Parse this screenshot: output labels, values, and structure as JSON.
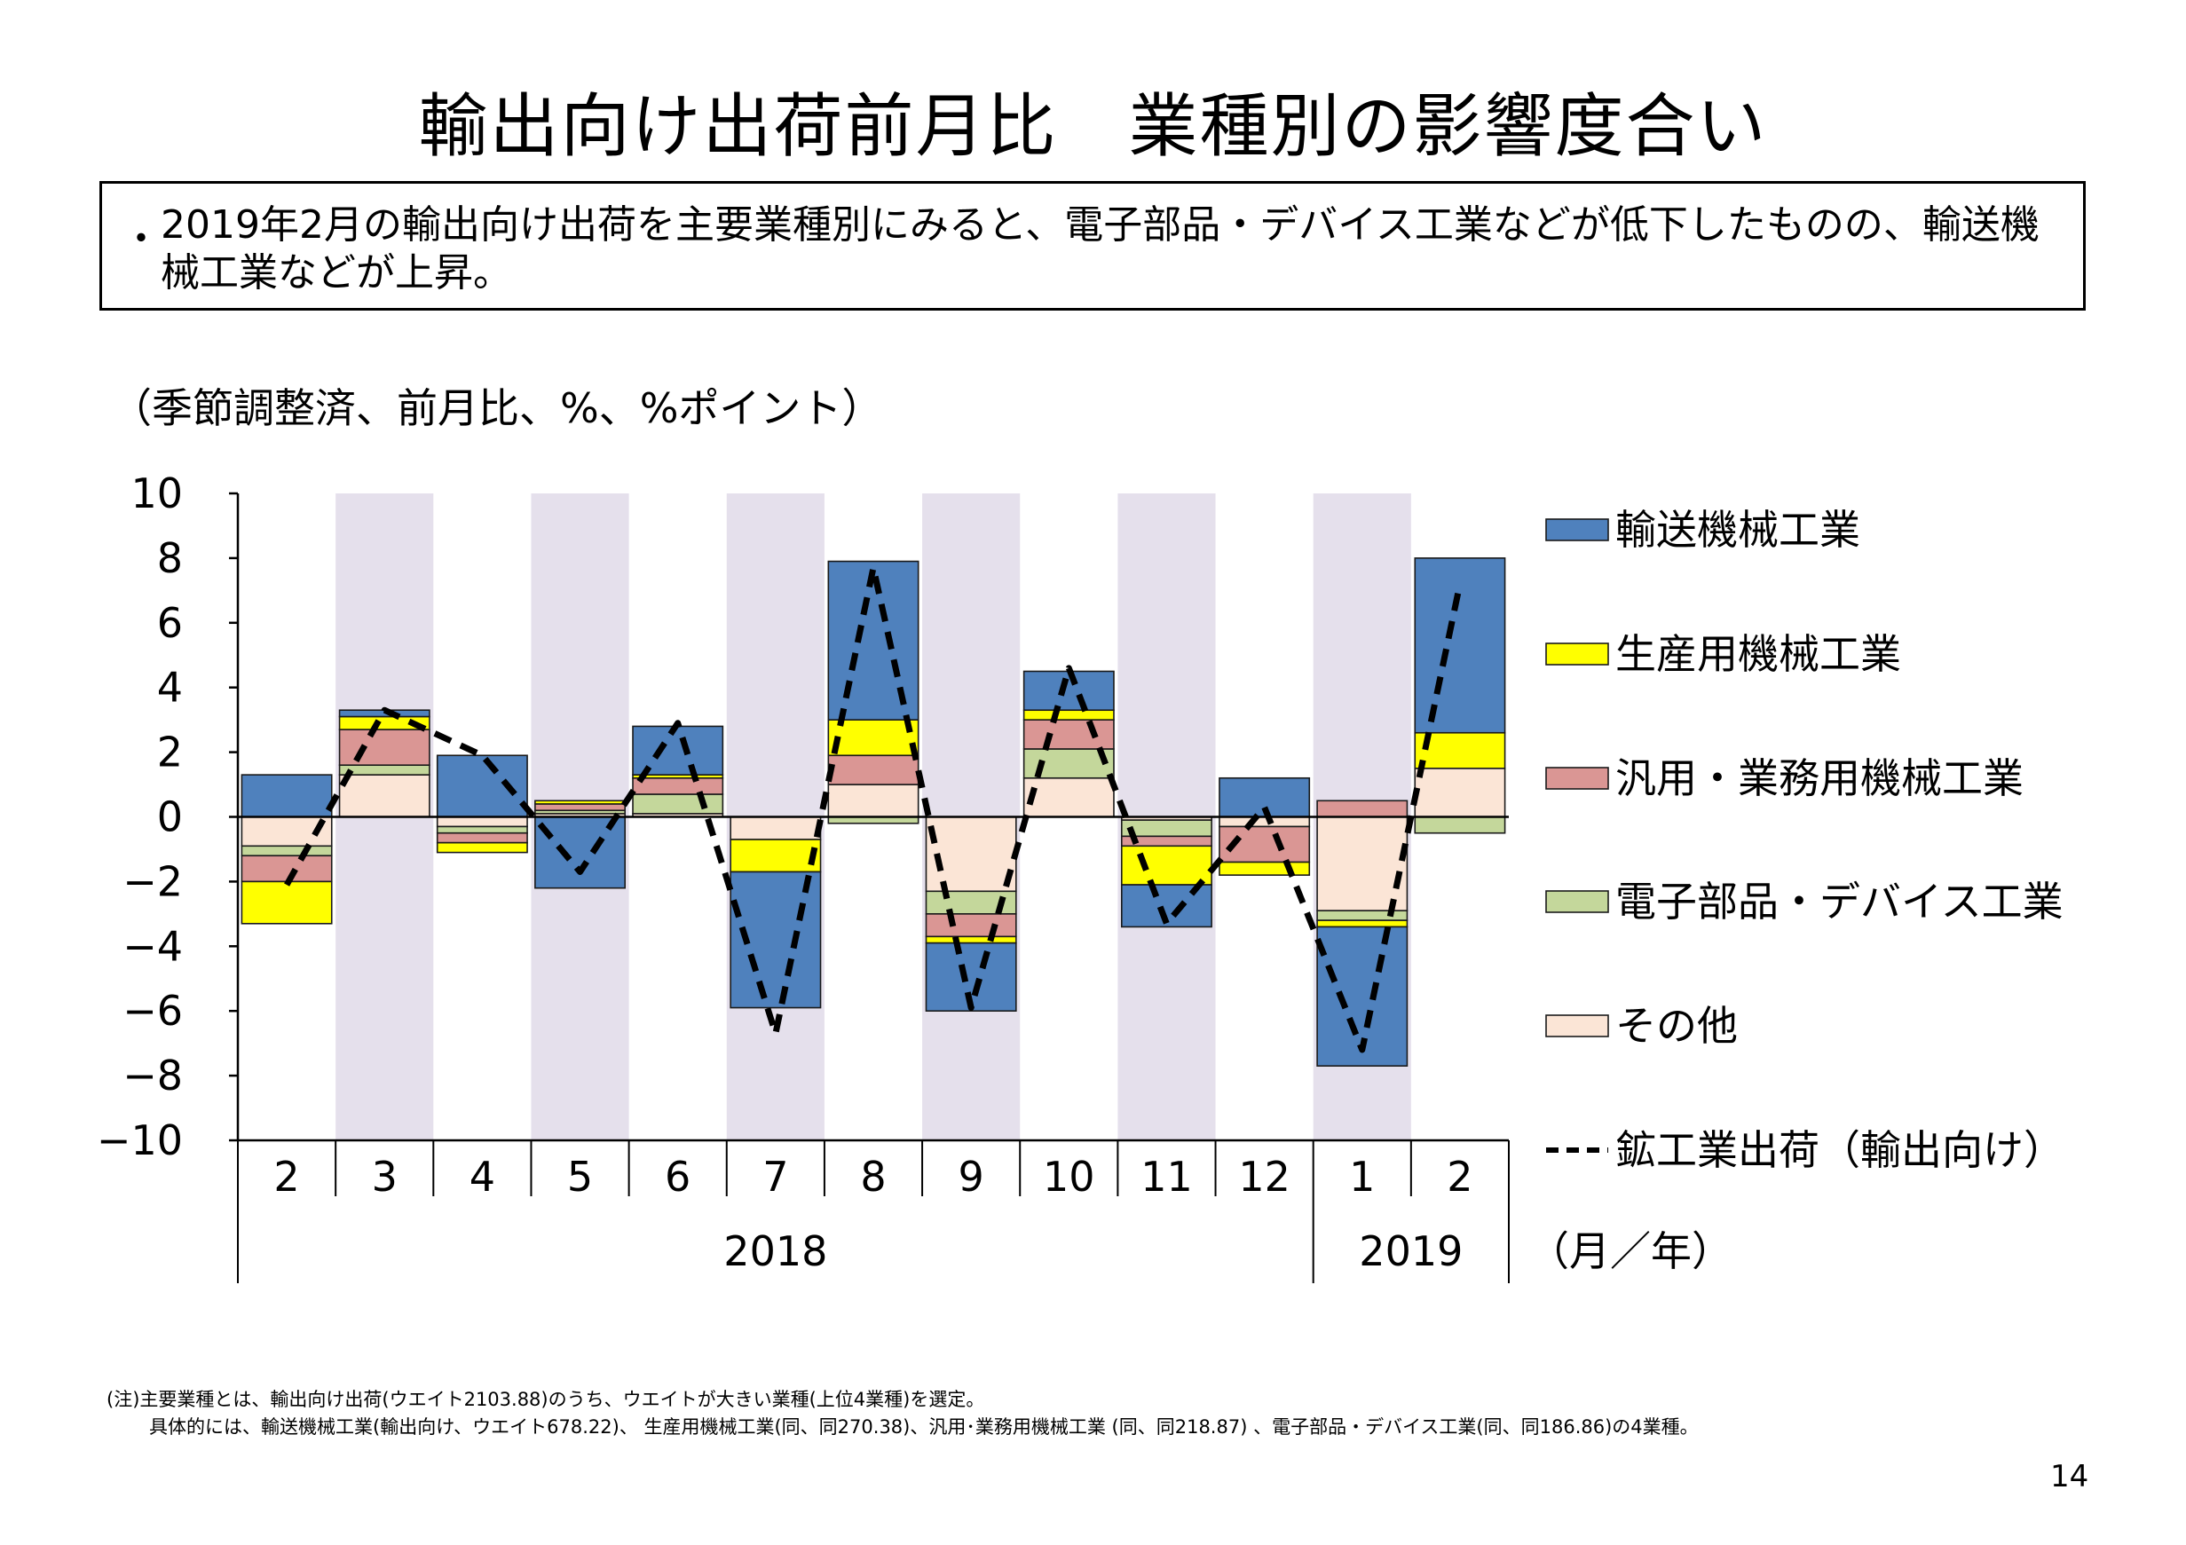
{
  "title": "輸出向け出荷前月比　業種別の影響度合い",
  "summary": {
    "bullet": "・",
    "text": "2019年2月の輸出向け出荷を主要業種別にみると、電子部品・デバイス工業などが低下したものの、輸送機械工業などが上昇。"
  },
  "chart_data": {
    "type": "bar",
    "stacked": true,
    "unit_label": "（季節調整済、前月比、%、%ポイント）",
    "categories": [
      "2",
      "3",
      "4",
      "5",
      "6",
      "7",
      "8",
      "9",
      "10",
      "11",
      "12",
      "1",
      "2"
    ],
    "year_labels": [
      {
        "label": "2018",
        "from": 0,
        "to": 10
      },
      {
        "label": "2019",
        "from": 11,
        "to": 12
      }
    ],
    "x_unit": "（月／年）",
    "ylim": [
      -10,
      10
    ],
    "yticks": [
      "10",
      "8",
      "6",
      "4",
      "2",
      "0",
      "−2",
      "−4",
      "−6",
      "−8",
      "−10"
    ],
    "ytick_values": [
      10,
      8,
      6,
      4,
      2,
      0,
      -2,
      -4,
      -6,
      -8,
      -10
    ],
    "shaded_categories": [
      1,
      3,
      5,
      7,
      9,
      11
    ],
    "shade_color": "#e5e0ec",
    "series": [
      {
        "name": "その他",
        "color": "#fbe5d6",
        "values": [
          -0.9,
          1.3,
          -0.3,
          0.1,
          0.1,
          -0.7,
          1.0,
          -2.3,
          1.2,
          -0.1,
          -0.3,
          -2.9,
          1.5
        ]
      },
      {
        "name": "電子部品・デバイス工業",
        "color": "#c4d79b",
        "values": [
          -0.3,
          0.3,
          -0.2,
          0.1,
          0.6,
          0.0,
          -0.2,
          -0.7,
          0.9,
          -0.5,
          0.0,
          -0.3,
          -0.5
        ]
      },
      {
        "name": "汎用・業務用機械工業",
        "color": "#da9694",
        "values": [
          -0.8,
          1.1,
          -0.3,
          0.2,
          0.5,
          0.0,
          0.9,
          -0.7,
          0.9,
          -0.3,
          -1.1,
          0.5,
          0.0
        ]
      },
      {
        "name": "生産用機械工業",
        "color": "#ffff00",
        "values": [
          -1.3,
          0.4,
          -0.3,
          0.1,
          0.1,
          -1.0,
          1.1,
          -0.2,
          0.3,
          -1.2,
          -0.4,
          -0.2,
          1.1
        ]
      },
      {
        "name": "輸送機械工業",
        "color": "#4f81bd",
        "values": [
          1.3,
          0.2,
          1.9,
          -2.2,
          1.5,
          -4.2,
          4.9,
          -2.1,
          1.2,
          -1.3,
          1.2,
          -4.3,
          5.4
        ]
      }
    ],
    "legend_order": [
      "輸送機械工業",
      "生産用機械工業",
      "汎用・業務用機械工業",
      "電子部品・デバイス工業",
      "その他"
    ],
    "line": {
      "name": "鉱工業出荷（輸出向け）",
      "style": "dashed",
      "values": [
        -2.1,
        3.3,
        1.9,
        -1.7,
        2.9,
        -6.7,
        7.7,
        -5.9,
        4.6,
        -3.3,
        0.3,
        -7.2,
        7.2
      ]
    },
    "legend_position": "right"
  },
  "notes": {
    "line1": "(注)主要業種とは、輸出向け出荷(ウエイト2103.88)のうち、ウエイトが大きい業種(上位4業種)を選定。",
    "line2": "具体的には、輸送機械工業(輸出向け、ウエイト678.22)、 生産用機械工業(同、同270.38)、汎用･業務用機械工業 (同、同218.87) 、電子部品・デバイス工業(同、同186.86)の4業種。"
  },
  "page_number": "14"
}
